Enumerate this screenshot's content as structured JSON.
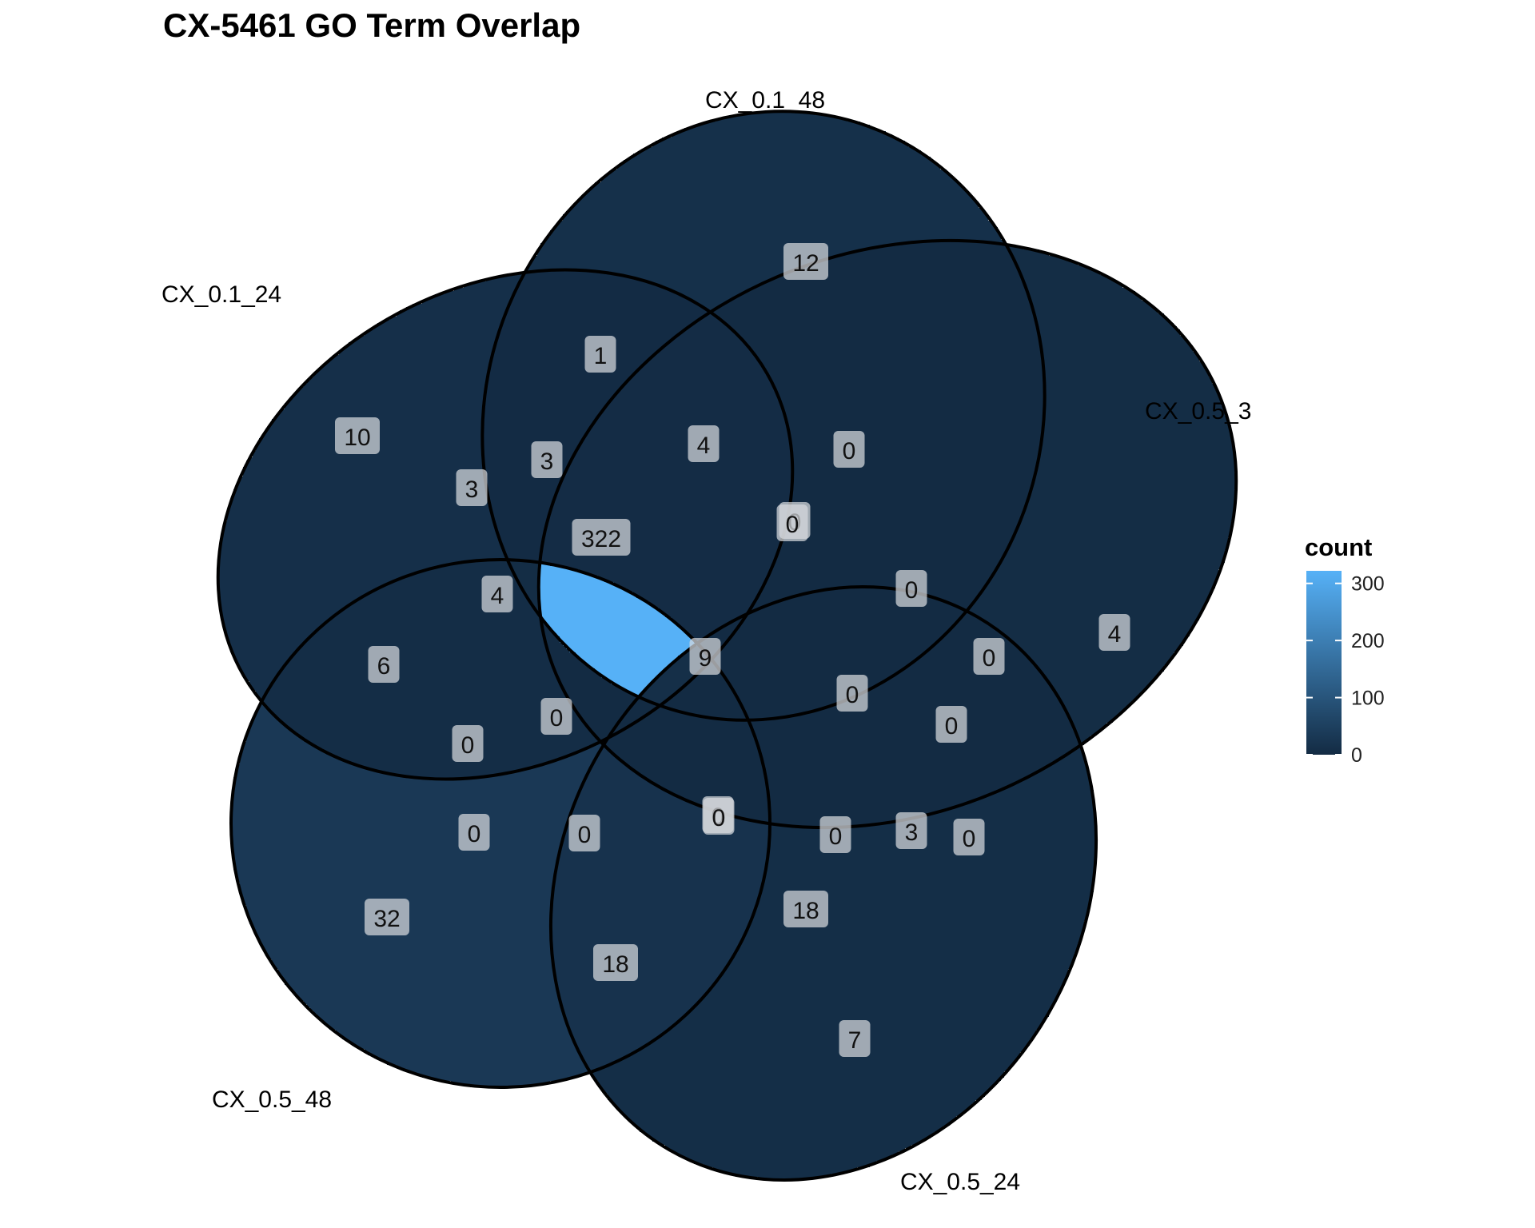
{
  "chart_data": {
    "type": "venn",
    "title": "CX-5461 GO Term Overlap",
    "sets": [
      "CX_0.1_24",
      "CX_0.1_48",
      "CX_0.5_3",
      "CX_0.5_24",
      "CX_0.5_48"
    ],
    "regions": [
      {
        "sets": [
          "CX_0.1_24"
        ],
        "count": 10
      },
      {
        "sets": [
          "CX_0.1_48"
        ],
        "count": 12
      },
      {
        "sets": [
          "CX_0.5_3"
        ],
        "count": 4
      },
      {
        "sets": [
          "CX_0.5_24"
        ],
        "count": 7
      },
      {
        "sets": [
          "CX_0.5_48"
        ],
        "count": 32
      },
      {
        "sets": [
          "CX_0.1_24",
          "CX_0.1_48"
        ],
        "count": 1
      },
      {
        "sets": [
          "CX_0.1_48",
          "CX_0.5_3"
        ],
        "count": 0
      },
      {
        "sets": [
          "CX_0.5_3",
          "CX_0.5_24"
        ],
        "count": 0
      },
      {
        "sets": [
          "CX_0.5_24",
          "CX_0.5_48"
        ],
        "count": 18
      },
      {
        "sets": [
          "CX_0.1_24",
          "CX_0.5_48"
        ],
        "count": 6
      },
      {
        "sets": [
          "CX_0.1_24",
          "CX_0.5_3"
        ],
        "count": 3
      },
      {
        "sets": [
          "CX_0.1_48",
          "CX_0.5_24"
        ],
        "count": 18
      },
      {
        "sets": [
          "CX_0.1_24",
          "CX_0.5_24"
        ],
        "count": 0
      },
      {
        "sets": [
          "CX_0.1_48",
          "CX_0.5_48"
        ],
        "count": 0
      },
      {
        "sets": [
          "CX_0.5_3",
          "CX_0.5_48"
        ],
        "count": 3
      },
      {
        "sets": [
          "CX_0.1_24",
          "CX_0.1_48",
          "CX_0.5_3"
        ],
        "count": 3
      },
      {
        "sets": [
          "CX_0.1_48",
          "CX_0.5_3",
          "CX_0.5_24"
        ],
        "count": 0
      },
      {
        "sets": [
          "CX_0.5_3",
          "CX_0.5_24",
          "CX_0.5_48"
        ],
        "count": 0
      },
      {
        "sets": [
          "CX_0.1_24",
          "CX_0.5_24",
          "CX_0.5_48"
        ],
        "count": 0
      },
      {
        "sets": [
          "CX_0.1_24",
          "CX_0.1_48",
          "CX_0.5_48"
        ],
        "count": 4
      },
      {
        "sets": [
          "CX_0.1_24",
          "CX_0.1_48",
          "CX_0.5_24"
        ],
        "count": 4
      },
      {
        "sets": [
          "CX_0.1_48",
          "CX_0.5_3",
          "CX_0.5_48"
        ],
        "count": 0
      },
      {
        "sets": [
          "CX_0.1_24",
          "CX_0.5_3",
          "CX_0.5_24"
        ],
        "count": 0
      },
      {
        "sets": [
          "CX_0.1_48",
          "CX_0.5_24",
          "CX_0.5_48"
        ],
        "count": 0
      },
      {
        "sets": [
          "CX_0.1_24",
          "CX_0.5_3",
          "CX_0.5_48"
        ],
        "count": 0
      },
      {
        "sets": [
          "CX_0.1_24",
          "CX_0.1_48",
          "CX_0.5_3",
          "CX_0.5_24"
        ],
        "count": 0
      },
      {
        "sets": [
          "CX_0.1_48",
          "CX_0.5_3",
          "CX_0.5_24",
          "CX_0.5_48"
        ],
        "count": 0
      },
      {
        "sets": [
          "CX_0.1_24",
          "CX_0.5_3",
          "CX_0.5_24",
          "CX_0.5_48"
        ],
        "count": 0
      },
      {
        "sets": [
          "CX_0.1_24",
          "CX_0.1_48",
          "CX_0.5_24",
          "CX_0.5_48"
        ],
        "count": 0
      },
      {
        "sets": [
          "CX_0.1_24",
          "CX_0.1_48",
          "CX_0.5_3",
          "CX_0.5_48"
        ],
        "count": 322
      },
      {
        "sets": [
          "CX_0.1_24",
          "CX_0.1_48",
          "CX_0.5_3",
          "CX_0.5_24",
          "CX_0.5_48"
        ],
        "count": 9
      }
    ],
    "legend": {
      "title": "count",
      "ticks": [
        0,
        100,
        200,
        300
      ],
      "range": [
        0,
        322
      ],
      "low_color": "#132b43",
      "high_color": "#56b1f7",
      "placement": "right"
    },
    "grid": false
  }
}
